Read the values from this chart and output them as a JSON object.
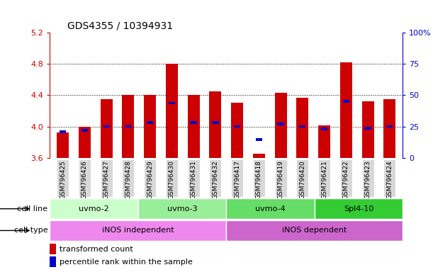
{
  "title": "GDS4355 / 10394931",
  "samples": [
    "GSM796425",
    "GSM796426",
    "GSM796427",
    "GSM796428",
    "GSM796429",
    "GSM796430",
    "GSM796431",
    "GSM796432",
    "GSM796417",
    "GSM796418",
    "GSM796419",
    "GSM796420",
    "GSM796421",
    "GSM796422",
    "GSM796423",
    "GSM796424"
  ],
  "bar_bottom": 3.6,
  "bar_tops": [
    3.92,
    4.0,
    4.35,
    4.4,
    4.4,
    4.8,
    4.4,
    4.45,
    4.3,
    3.65,
    4.43,
    4.37,
    4.01,
    4.82,
    4.32,
    4.35
  ],
  "blue_positions": [
    3.93,
    3.95,
    4.0,
    4.0,
    4.05,
    4.3,
    4.05,
    4.05,
    4.0,
    3.83,
    4.03,
    4.0,
    3.97,
    4.32,
    3.98,
    4.0
  ],
  "ylim_left": [
    3.6,
    5.2
  ],
  "ylim_right": [
    0,
    100
  ],
  "yticks_left": [
    3.6,
    4.0,
    4.4,
    4.8,
    5.2
  ],
  "yticks_right": [
    0,
    25,
    50,
    75,
    100
  ],
  "cell_line_groups": [
    {
      "label": "uvmo-2",
      "start": 0,
      "end": 4,
      "color": "#ccffcc"
    },
    {
      "label": "uvmo-3",
      "start": 4,
      "end": 8,
      "color": "#99ee99"
    },
    {
      "label": "uvmo-4",
      "start": 8,
      "end": 12,
      "color": "#66dd66"
    },
    {
      "label": "Spl4-10",
      "start": 12,
      "end": 16,
      "color": "#33cc33"
    }
  ],
  "cell_type_groups": [
    {
      "label": "iNOS independent",
      "start": 0,
      "end": 8,
      "color": "#ee88ee"
    },
    {
      "label": "iNOS dependent",
      "start": 8,
      "end": 16,
      "color": "#cc66cc"
    }
  ],
  "bar_color": "#cc0000",
  "blue_color": "#0000cc",
  "left_label_color": "#cc0000",
  "right_label_color": "#0000cc",
  "grid_dotted_at": [
    4.0,
    4.4,
    4.8
  ]
}
